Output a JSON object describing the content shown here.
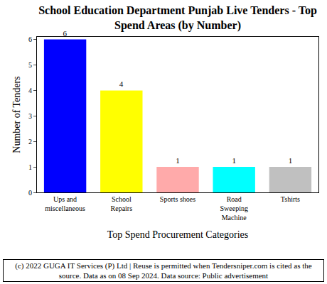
{
  "chart_data": {
    "type": "bar",
    "title": "School Education Department Punjab Live Tenders - Top Spend Areas (by Number)",
    "x_label": "Top Spend Procurement Categories",
    "y_label": "Number of Tenders",
    "categories": [
      "Ups and miscellaneous",
      "School Repairs",
      "Sports shoes",
      "Road Sweeping Machine",
      "Tshirts"
    ],
    "values": [
      6,
      4,
      1,
      1,
      1
    ],
    "colors": [
      "#0000ff",
      "#ffff00",
      "#ffaaaa",
      "#00ffff",
      "#c0c0c0"
    ],
    "ylim": [
      0,
      6.1
    ],
    "yticks": [
      0,
      1,
      2,
      3,
      4,
      5,
      6
    ],
    "grid": false,
    "data_labels": true,
    "annotations": [
      "(c) 2022 GUGA IT Services (P) Ltd | Reuse is permitted when Tendersniper.com is cited as the source. Data as on 08 Sep 2024. Data source: Public advertisement"
    ]
  }
}
